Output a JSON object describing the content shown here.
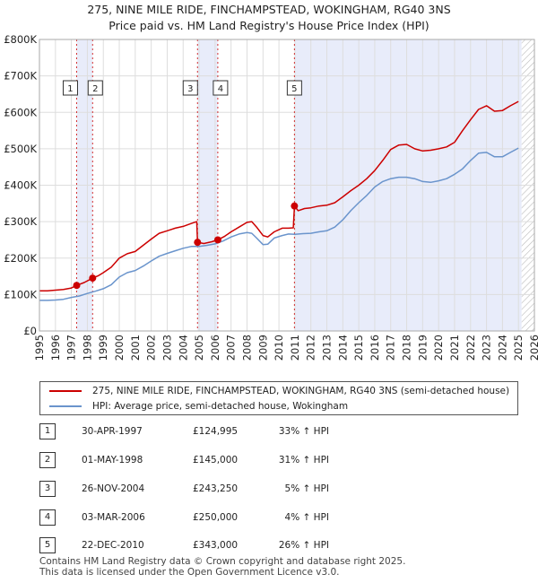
{
  "colors": {
    "property": "#cc0000",
    "hpi": "#6a94cc",
    "shade": "#e8ecfa",
    "vline": "#cc0000",
    "grid": "#dddddd"
  },
  "chart_data": {
    "type": "line",
    "title": "275, NINE MILE RIDE, FINCHAMPSTEAD, WOKINGHAM, RG40 3NS",
    "subtitle": "Price paid vs. HM Land Registry's House Price Index (HPI)",
    "xlabel": "",
    "ylabel": "",
    "xlim": [
      1995,
      2026
    ],
    "ylim": [
      0,
      800000
    ],
    "yticks": [
      0,
      100000,
      200000,
      300000,
      400000,
      500000,
      600000,
      700000,
      800000
    ],
    "ytick_labels": [
      "£0",
      "£100K",
      "£200K",
      "£300K",
      "£400K",
      "£500K",
      "£600K",
      "£700K",
      "£800K"
    ],
    "xticks": [
      1995,
      1996,
      1997,
      1998,
      1999,
      2000,
      2001,
      2002,
      2003,
      2004,
      2005,
      2006,
      2007,
      2008,
      2009,
      2010,
      2011,
      2012,
      2013,
      2014,
      2015,
      2016,
      2017,
      2018,
      2019,
      2020,
      2021,
      2022,
      2023,
      2024,
      2025,
      2026
    ],
    "grid": true,
    "shaded_ranges": [
      [
        1997.33,
        1998.33
      ],
      [
        2004.9,
        2006.17
      ],
      [
        2010.97,
        2025.2
      ]
    ],
    "hatched_range": [
      2025.2,
      2026
    ],
    "series": [
      {
        "name": "275, NINE MILE RIDE, FINCHAMPSTEAD, WOKINGHAM, RG40 3NS (semi-detached house)",
        "x": [
          1995.0,
          1995.5,
          1996.0,
          1996.5,
          1997.0,
          1997.33,
          1997.8,
          1998.33,
          1998.7,
          1999.0,
          1999.5,
          2000.0,
          2000.5,
          2001.0,
          2001.5,
          2002.0,
          2002.5,
          2003.0,
          2003.5,
          2004.0,
          2004.5,
          2004.85,
          2004.9,
          2005.3,
          2005.8,
          2006.17,
          2006.6,
          2007.0,
          2007.5,
          2008.0,
          2008.3,
          2008.6,
          2009.0,
          2009.3,
          2009.7,
          2010.2,
          2010.6,
          2010.9,
          2010.97,
          2011.2,
          2011.6,
          2012.0,
          2012.5,
          2013.0,
          2013.5,
          2014.0,
          2014.5,
          2015.0,
          2015.5,
          2016.0,
          2016.5,
          2017.0,
          2017.5,
          2018.0,
          2018.5,
          2019.0,
          2019.5,
          2020.0,
          2020.5,
          2021.0,
          2021.5,
          2022.0,
          2022.5,
          2023.0,
          2023.5,
          2024.0,
          2024.5,
          2025.0
        ],
        "values": [
          110000,
          110000,
          112000,
          114000,
          118000,
          124995,
          133000,
          145000,
          152000,
          160000,
          175000,
          200000,
          212000,
          218000,
          235000,
          252000,
          268000,
          275000,
          282000,
          287000,
          295000,
          300000,
          243250,
          240000,
          245000,
          250000,
          260000,
          272000,
          285000,
          298000,
          300000,
          285000,
          262000,
          258000,
          272000,
          282000,
          282000,
          283000,
          343000,
          330000,
          336000,
          338000,
          343000,
          345000,
          352000,
          368000,
          385000,
          400000,
          418000,
          440000,
          468000,
          498000,
          510000,
          512000,
          500000,
          494000,
          496000,
          500000,
          505000,
          518000,
          550000,
          580000,
          608000,
          618000,
          603000,
          605000,
          618000,
          630000
        ]
      },
      {
        "name": "HPI: Average price, semi-detached house, Wokingham",
        "x": [
          1995.0,
          1995.5,
          1996.0,
          1996.5,
          1997.0,
          1997.5,
          1998.0,
          1998.5,
          1999.0,
          1999.5,
          2000.0,
          2000.5,
          2001.0,
          2001.5,
          2002.0,
          2002.5,
          2003.0,
          2003.5,
          2004.0,
          2004.5,
          2005.0,
          2005.5,
          2006.0,
          2006.5,
          2007.0,
          2007.5,
          2008.0,
          2008.3,
          2008.6,
          2009.0,
          2009.3,
          2009.7,
          2010.2,
          2010.6,
          2011.0,
          2011.5,
          2012.0,
          2012.5,
          2013.0,
          2013.5,
          2014.0,
          2014.5,
          2015.0,
          2015.5,
          2016.0,
          2016.5,
          2017.0,
          2017.5,
          2018.0,
          2018.5,
          2019.0,
          2019.5,
          2020.0,
          2020.5,
          2021.0,
          2021.5,
          2022.0,
          2022.5,
          2023.0,
          2023.5,
          2024.0,
          2024.5,
          2025.0
        ],
        "values": [
          84000,
          84000,
          85000,
          87000,
          92000,
          96000,
          103000,
          109000,
          116000,
          127000,
          148000,
          160000,
          166000,
          178000,
          192000,
          205000,
          213000,
          220000,
          227000,
          232000,
          232000,
          235000,
          239000,
          247000,
          258000,
          266000,
          270000,
          268000,
          255000,
          237000,
          238000,
          255000,
          262000,
          266000,
          265000,
          267000,
          268000,
          272000,
          275000,
          285000,
          305000,
          330000,
          352000,
          372000,
          395000,
          410000,
          418000,
          422000,
          422000,
          418000,
          410000,
          408000,
          412000,
          418000,
          430000,
          445000,
          468000,
          488000,
          490000,
          478000,
          478000,
          490000,
          502000
        ]
      }
    ],
    "sales": [
      {
        "id": "1",
        "x": 1997.33,
        "price": 124995
      },
      {
        "id": "2",
        "x": 1998.33,
        "price": 145000
      },
      {
        "id": "3",
        "x": 2004.9,
        "price": 243250
      },
      {
        "id": "4",
        "x": 2006.17,
        "price": 250000
      },
      {
        "id": "5",
        "x": 2010.97,
        "price": 343000
      }
    ]
  },
  "title": {
    "line1": "275, NINE MILE RIDE, FINCHAMPSTEAD, WOKINGHAM, RG40 3NS",
    "line2": "Price paid vs. HM Land Registry's House Price Index (HPI)"
  },
  "legend": {
    "property": "275, NINE MILE RIDE, FINCHAMPSTEAD, WOKINGHAM, RG40 3NS (semi-detached house)",
    "hpi": "HPI: Average price, semi-detached house, Wokingham"
  },
  "table": [
    {
      "num": "1",
      "date": "30-APR-1997",
      "price": "£124,995",
      "hpi": "33% ↑ HPI"
    },
    {
      "num": "2",
      "date": "01-MAY-1998",
      "price": "£145,000",
      "hpi": "31% ↑ HPI"
    },
    {
      "num": "3",
      "date": "26-NOV-2004",
      "price": "£243,250",
      "hpi": "5% ↑ HPI"
    },
    {
      "num": "4",
      "date": "03-MAR-2006",
      "price": "£250,000",
      "hpi": "4% ↑ HPI"
    },
    {
      "num": "5",
      "date": "22-DEC-2010",
      "price": "£343,000",
      "hpi": "26% ↑ HPI"
    }
  ],
  "footer": {
    "line1": "Contains HM Land Registry data © Crown copyright and database right 2025.",
    "line2": "This data is licensed under the Open Government Licence v3.0."
  }
}
